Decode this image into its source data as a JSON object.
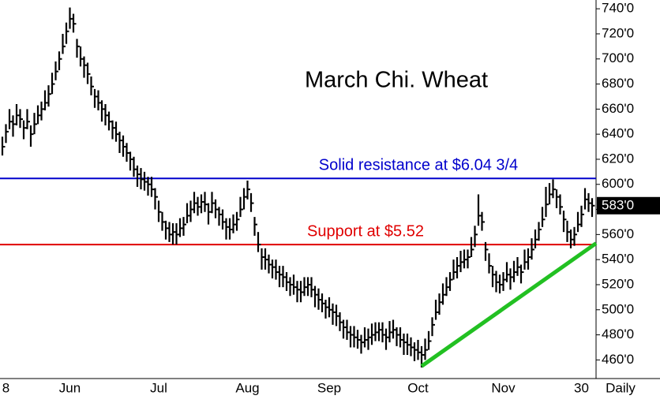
{
  "chart_data": {
    "type": "ohlc",
    "title": "March Chi. Wheat",
    "period_label": "Daily",
    "categories": [
      null,
      "8",
      null,
      null,
      null,
      null,
      null,
      null,
      null,
      null,
      null,
      null,
      null,
      null,
      null,
      null,
      null,
      null,
      null,
      "Jun",
      null,
      null,
      null,
      null,
      null,
      null,
      null,
      null,
      null,
      null,
      null,
      null,
      null,
      null,
      null,
      null,
      null,
      null,
      null,
      null,
      null,
      null,
      null,
      null,
      "Jul",
      null,
      null,
      null,
      null,
      null,
      null,
      null,
      null,
      null,
      null,
      null,
      null,
      null,
      null,
      null,
      null,
      null,
      null,
      null,
      null,
      null,
      null,
      null,
      null,
      "Aug",
      null,
      null,
      null,
      null,
      null,
      null,
      null,
      null,
      null,
      null,
      null,
      null,
      null,
      null,
      null,
      null,
      null,
      null,
      null,
      null,
      null,
      null,
      "Sep",
      null,
      null,
      null,
      null,
      null,
      null,
      null,
      null,
      null,
      null,
      null,
      null,
      null,
      null,
      null,
      null,
      null,
      null,
      null,
      null,
      null,
      null,
      null,
      null,
      "Oct",
      null,
      null,
      null,
      null,
      null,
      null,
      null,
      null,
      null,
      null,
      null,
      null,
      null,
      null,
      null,
      null,
      null,
      null,
      null,
      null,
      null,
      null,
      null,
      "Nov",
      null,
      null,
      null,
      null,
      null,
      null,
      null,
      null,
      null,
      null,
      null,
      null,
      null,
      null,
      null,
      null,
      null,
      null,
      null,
      null,
      null,
      "30",
      null,
      null,
      null
    ],
    "high": [
      638,
      648,
      660,
      655,
      664,
      660,
      651,
      660,
      647,
      657,
      663,
      666,
      675,
      679,
      689,
      698,
      706,
      720,
      729,
      741,
      736,
      716,
      710,
      702,
      697,
      686,
      676,
      675,
      667,
      664,
      658,
      651,
      650,
      642,
      639,
      633,
      626,
      622,
      615,
      613,
      610,
      606,
      606,
      597,
      587,
      578,
      571,
      570,
      569,
      569,
      573,
      574,
      585,
      587,
      594,
      590,
      592,
      594,
      585,
      594,
      588,
      582,
      580,
      573,
      573,
      576,
      578,
      590,
      597,
      603,
      593,
      574,
      562,
      549,
      549,
      544,
      540,
      540,
      535,
      535,
      530,
      526,
      528,
      523,
      523,
      526,
      526,
      526,
      519,
      517,
      513,
      508,
      510,
      505,
      504,
      498,
      492,
      492,
      487,
      487,
      484,
      480,
      486,
      485,
      489,
      490,
      490,
      490,
      485,
      491,
      492,
      486,
      486,
      481,
      481,
      478,
      474,
      476,
      471,
      477,
      483,
      494,
      508,
      513,
      521,
      526,
      530,
      540,
      542,
      547,
      548,
      548,
      558,
      567,
      592,
      578,
      554,
      545,
      535,
      531,
      528,
      530,
      538,
      533,
      539,
      542,
      536,
      548,
      549,
      557,
      564,
      570,
      582,
      598,
      601,
      604,
      596,
      592,
      579,
      571,
      564,
      566,
      578,
      583,
      597,
      593,
      589
    ],
    "low": [
      623,
      633,
      644,
      638,
      647,
      645,
      636,
      644,
      630,
      640,
      648,
      651,
      659,
      662,
      672,
      683,
      691,
      704,
      712,
      724,
      721,
      701,
      694,
      685,
      680,
      671,
      661,
      659,
      650,
      647,
      643,
      636,
      634,
      625,
      622,
      618,
      611,
      606,
      598,
      596,
      595,
      591,
      590,
      580,
      570,
      563,
      556,
      554,
      552,
      552,
      558,
      559,
      569,
      570,
      577,
      575,
      577,
      578,
      568,
      577,
      573,
      567,
      564,
      556,
      556,
      561,
      563,
      574,
      580,
      588,
      578,
      559,
      546,
      532,
      532,
      529,
      525,
      524,
      518,
      518,
      515,
      511,
      512,
      506,
      506,
      511,
      511,
      510,
      502,
      500,
      498,
      493,
      494,
      488,
      487,
      483,
      477,
      476,
      470,
      470,
      469,
      465,
      470,
      468,
      472,
      475,
      475,
      474,
      468,
      474,
      477,
      471,
      470,
      464,
      464,
      463,
      459,
      460,
      454,
      460,
      468,
      479,
      492,
      496,
      504,
      511,
      515,
      524,
      525,
      530,
      533,
      533,
      542,
      550,
      567,
      563,
      539,
      529,
      518,
      514,
      513,
      515,
      522,
      516,
      522,
      527,
      521,
      532,
      532,
      540,
      549,
      555,
      566,
      574,
      584,
      589,
      581,
      576,
      562,
      554,
      549,
      551,
      562,
      566,
      580,
      578,
      574
    ],
    "close": [
      630,
      642,
      650,
      648,
      655,
      652,
      645,
      650,
      640,
      648,
      655,
      660,
      665,
      672,
      680,
      690,
      700,
      710,
      722,
      732,
      728,
      710,
      700,
      695,
      688,
      678,
      670,
      665,
      660,
      655,
      650,
      645,
      640,
      635,
      630,
      625,
      620,
      612,
      608,
      604,
      602,
      600,
      596,
      590,
      578,
      570,
      565,
      560,
      562,
      560,
      565,
      568,
      575,
      580,
      585,
      582,
      586,
      584,
      578,
      585,
      580,
      576,
      570,
      566,
      564,
      568,
      572,
      580,
      590,
      596,
      585,
      568,
      552,
      542,
      540,
      536,
      534,
      530,
      528,
      526,
      522,
      520,
      518,
      516,
      514,
      518,
      520,
      516,
      512,
      508,
      505,
      502,
      500,
      498,
      495,
      490,
      486,
      482,
      480,
      478,
      476,
      474,
      476,
      478,
      480,
      482,
      484,
      480,
      478,
      482,
      484,
      480,
      476,
      474,
      472,
      470,
      468,
      466,
      464,
      468,
      475,
      488,
      498,
      506,
      512,
      518,
      524,
      530,
      535,
      538,
      540,
      542,
      548,
      560,
      575,
      570,
      548,
      535,
      528,
      522,
      520,
      524,
      528,
      526,
      530,
      534,
      530,
      538,
      542,
      548,
      556,
      564,
      572,
      584,
      592,
      596,
      590,
      582,
      572,
      562,
      556,
      560,
      568,
      576,
      588,
      585,
      583
    ],
    "bar_color": "#000000",
    "ylim": [
      442,
      747
    ],
    "yticks": [
      {
        "value": 460,
        "label": "460'0"
      },
      {
        "value": 480,
        "label": "480'0"
      },
      {
        "value": 500,
        "label": "500'0"
      },
      {
        "value": 520,
        "label": "520'0"
      },
      {
        "value": 540,
        "label": "540'0"
      },
      {
        "value": 560,
        "label": "560'0"
      },
      {
        "value": 580,
        "label": "580'0"
      },
      {
        "value": 600,
        "label": "600'0"
      },
      {
        "value": 620,
        "label": "620'0"
      },
      {
        "value": 640,
        "label": "640'0"
      },
      {
        "value": 660,
        "label": "660'0"
      },
      {
        "value": 680,
        "label": "680'0"
      },
      {
        "value": 700,
        "label": "700'0"
      },
      {
        "value": 720,
        "label": "720'0"
      },
      {
        "value": 740,
        "label": "740'0"
      }
    ],
    "last_price": {
      "value": 583,
      "label": "583'0"
    },
    "levels": [
      {
        "label": "Solid resistance at $6.04 3/4",
        "value": 604.75,
        "color": "#0000cc"
      },
      {
        "label": "Support at $5.52",
        "value": 552,
        "color": "#e00000"
      }
    ],
    "trendline": {
      "from": 455,
      "to": 553,
      "color": "#22c022"
    }
  }
}
